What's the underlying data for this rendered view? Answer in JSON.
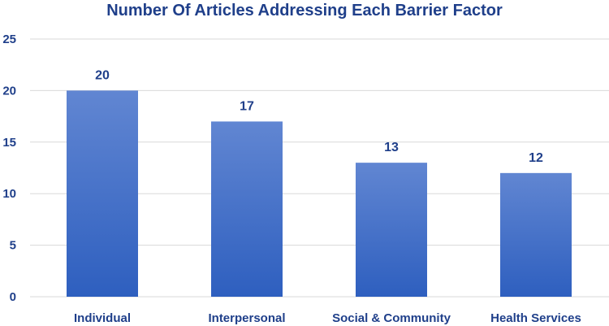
{
  "chart_data": {
    "type": "bar",
    "title": "Number Of Articles Addressing Each Barrier Factor",
    "categories": [
      "Individual",
      "Interpersonal",
      "Social & Community",
      "Health Services"
    ],
    "values": [
      20,
      17,
      13,
      12
    ],
    "ylim": [
      0,
      25
    ],
    "yticks": [
      "0",
      "5",
      "10",
      "15",
      "20",
      "25"
    ],
    "grid": true,
    "legend": "none",
    "colors": {
      "bar_top": "#6186d2",
      "bar_bottom": "#2e5fbf",
      "text": "#1f3f8a",
      "grid": "#d9d9d9"
    }
  }
}
